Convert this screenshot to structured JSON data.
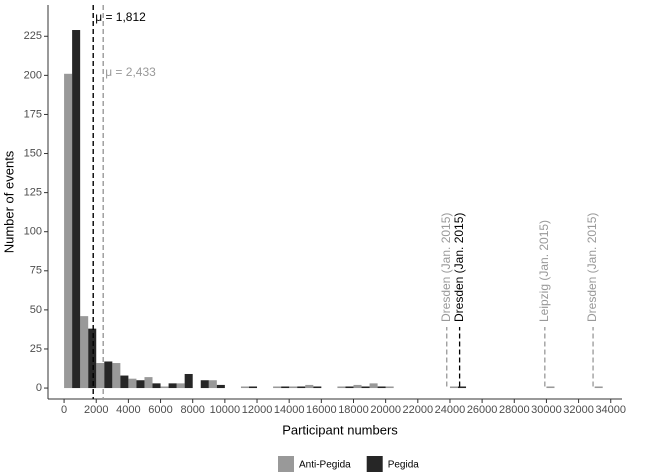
{
  "chart_data": {
    "type": "histogram",
    "bins": [
      0,
      1000,
      2000,
      3000,
      4000,
      5000,
      6000,
      7000,
      8000,
      9000,
      10000,
      11000,
      12000,
      13000,
      14000,
      15000,
      16000,
      17000,
      18000,
      19000,
      20000,
      21000,
      22000,
      23000,
      24000,
      25000,
      26000,
      27000,
      28000,
      29000,
      30000,
      31000,
      32000,
      33000,
      34000
    ],
    "series": [
      {
        "name": "Anti-Pegida",
        "color": "#999999",
        "values": [
          201,
          46,
          16,
          16,
          6,
          7,
          1,
          3,
          0,
          5,
          0,
          1,
          0,
          1,
          1,
          2,
          0,
          1,
          2,
          3,
          1,
          0,
          0,
          0,
          1,
          0,
          0,
          0,
          0,
          0,
          1,
          0,
          0,
          1
        ]
      },
      {
        "name": "Pegida",
        "color": "#262626",
        "values": [
          229,
          38,
          17,
          8,
          5,
          3,
          3,
          9,
          5,
          2,
          0,
          1,
          0,
          1,
          1,
          1,
          0,
          1,
          1,
          1,
          0,
          0,
          0,
          0,
          1,
          0,
          0,
          0,
          0,
          0,
          0,
          0,
          0,
          0
        ]
      }
    ],
    "xlim": [
      -1000,
      34700
    ],
    "ylim": [
      -7,
      245
    ],
    "xticks": [
      0,
      2000,
      4000,
      6000,
      8000,
      10000,
      12000,
      14000,
      16000,
      18000,
      20000,
      22000,
      24000,
      26000,
      28000,
      30000,
      32000,
      34000
    ],
    "yticks": [
      0,
      25,
      50,
      75,
      100,
      125,
      150,
      175,
      200,
      225
    ],
    "xlabel": "Participant numbers",
    "ylabel": "Number of events",
    "mean_lines": [
      {
        "label": "μ = 1,812",
        "x": 1812,
        "color": "#000000"
      },
      {
        "label": "μ = 2,433",
        "x": 2433,
        "color": "#999999"
      }
    ],
    "annotations": [
      {
        "text": "Dresden (Jan. 2015)",
        "x": 23800,
        "color": "#999999"
      },
      {
        "text": "Dresden (Jan. 2015)",
        "x": 24600,
        "color": "#000000"
      },
      {
        "text": "Leipzig (Jan. 2015)",
        "x": 29900,
        "color": "#999999"
      },
      {
        "text": "Dresden (Jan. 2015)",
        "x": 32900,
        "color": "#999999"
      }
    ],
    "legend": "bottom"
  }
}
